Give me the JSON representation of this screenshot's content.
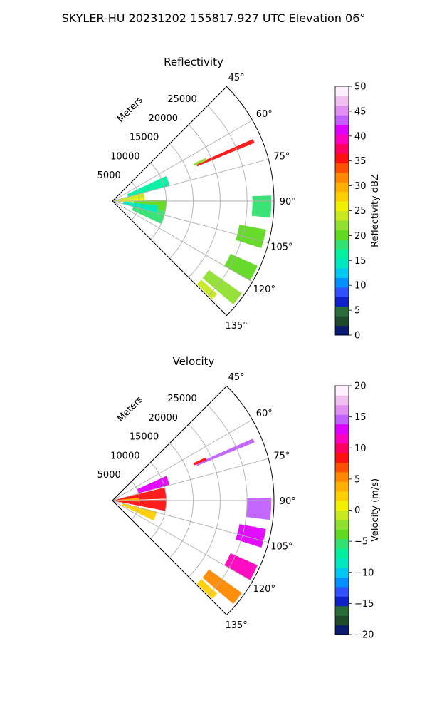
{
  "figure": {
    "suptitle": "SKYLER-HU  20231202  155817.927 UTC Elevation 06°"
  },
  "chart_data": [
    {
      "type": "polar-sector",
      "title": "Reflectivity",
      "radial_label": "Meters",
      "theta_range_deg": [
        45,
        135
      ],
      "theta_ticks": [
        "45°",
        "60°",
        "75°",
        "90°",
        "105°",
        "120°",
        "135°"
      ],
      "theta_tick_values": [
        45,
        60,
        75,
        90,
        105,
        120,
        135
      ],
      "r_range": [
        0,
        30000
      ],
      "r_ticks": [
        "5000",
        "10000",
        "15000",
        "20000",
        "25000"
      ],
      "r_tick_values": [
        5000,
        10000,
        15000,
        20000,
        25000
      ],
      "grid": true,
      "colorbar": {
        "label": "Reflectivity dBZ",
        "range": [
          0,
          50
        ],
        "ticks": [
          "0",
          "5",
          "10",
          "15",
          "20",
          "25",
          "30",
          "35",
          "40",
          "45",
          "50"
        ],
        "tick_values": [
          0,
          5,
          10,
          15,
          20,
          25,
          30,
          35,
          40,
          45,
          50
        ],
        "colors": [
          "#0a1a6e",
          "#1e4a2a",
          "#2a6b3a",
          "#1020c8",
          "#3050ff",
          "#0090ff",
          "#00c8f0",
          "#00e8c0",
          "#00f0a0",
          "#30e070",
          "#60d820",
          "#90e030",
          "#c8e820",
          "#f0f000",
          "#ffd000",
          "#ffb000",
          "#ff8800",
          "#ff5000",
          "#ff1010",
          "#ff0060",
          "#ff00c0",
          "#e000ff",
          "#c060ff",
          "#e090f0",
          "#f0c0f0",
          "#fff0ff"
        ]
      },
      "echoes": [
        {
          "theta": 67,
          "r1": 17000,
          "r2": 28500,
          "value": 36,
          "width_deg": 1.5
        },
        {
          "theta": 66,
          "r1": 16500,
          "r2": 19000,
          "value": 22,
          "width_deg": 1.5
        },
        {
          "theta": 80,
          "r1": 0,
          "r2": 6000,
          "value": 24,
          "width_deg": 10
        },
        {
          "theta": 70,
          "r1": 3000,
          "r2": 11000,
          "value": 17,
          "width_deg": 10
        },
        {
          "theta": 90,
          "r1": 500,
          "r2": 6000,
          "value": 26,
          "width_deg": 10
        },
        {
          "theta": 95,
          "r1": 4000,
          "r2": 10000,
          "value": 20,
          "width_deg": 12
        },
        {
          "theta": 108,
          "r1": 4000,
          "r2": 10000,
          "value": 18,
          "width_deg": 14
        },
        {
          "theta": 100,
          "r1": 2000,
          "r2": 8500,
          "value": 14,
          "width_deg": 10
        },
        {
          "theta": 92,
          "r1": 26000,
          "r2": 29500,
          "value": 19,
          "width_deg": 8
        },
        {
          "theta": 104,
          "r1": 24000,
          "r2": 29000,
          "value": 20,
          "width_deg": 7
        },
        {
          "theta": 117,
          "r1": 24000,
          "r2": 29500,
          "value": 21,
          "width_deg": 6
        },
        {
          "theta": 128,
          "r1": 22000,
          "r2": 29500,
          "value": 22,
          "width_deg": 5
        },
        {
          "theta": 133,
          "r1": 22000,
          "r2": 26000,
          "value": 24,
          "width_deg": 3
        }
      ]
    },
    {
      "type": "polar-sector",
      "title": "Velocity",
      "radial_label": "Meters",
      "theta_range_deg": [
        45,
        135
      ],
      "theta_ticks": [
        "45°",
        "60°",
        "75°",
        "90°",
        "105°",
        "120°",
        "135°"
      ],
      "theta_tick_values": [
        45,
        60,
        75,
        90,
        105,
        120,
        135
      ],
      "r_range": [
        0,
        30000
      ],
      "r_ticks": [
        "5000",
        "10000",
        "15000",
        "20000",
        "25000"
      ],
      "r_tick_values": [
        5000,
        10000,
        15000,
        20000,
        25000
      ],
      "grid": true,
      "colorbar": {
        "label": "Velocity (m/s)",
        "range": [
          -20,
          20
        ],
        "ticks": [
          "−20",
          "−15",
          "−10",
          "−5",
          "0",
          "5",
          "10",
          "15",
          "20"
        ],
        "tick_values": [
          -20,
          -15,
          -10,
          -5,
          0,
          5,
          10,
          15,
          20
        ],
        "colors": [
          "#0a1a6e",
          "#1e4a2a",
          "#2a6b3a",
          "#1020c8",
          "#3050ff",
          "#0090ff",
          "#00c8f0",
          "#00e8c0",
          "#00f0a0",
          "#30e070",
          "#60d820",
          "#90e030",
          "#c8e820",
          "#f0f000",
          "#ffd000",
          "#ffb000",
          "#ff8800",
          "#ff5000",
          "#ff1010",
          "#ff0060",
          "#ff00c0",
          "#e000ff",
          "#c060ff",
          "#e090f0",
          "#f0c0f0",
          "#fff0ff"
        ]
      },
      "echoes": [
        {
          "theta": 67,
          "r1": 17000,
          "r2": 28500,
          "value": 14,
          "width_deg": 1.5
        },
        {
          "theta": 66,
          "r1": 16500,
          "r2": 19000,
          "value": 8,
          "width_deg": 1.5
        },
        {
          "theta": 70,
          "r1": 5000,
          "r2": 11000,
          "value": 13,
          "width_deg": 9
        },
        {
          "theta": 82,
          "r1": 0,
          "r2": 10000,
          "value": 9,
          "width_deg": 12
        },
        {
          "theta": 95,
          "r1": 500,
          "r2": 10000,
          "value": 8,
          "width_deg": 12
        },
        {
          "theta": 110,
          "r1": 2000,
          "r2": 8500,
          "value": 3,
          "width_deg": 12
        },
        {
          "theta": 88,
          "r1": 0,
          "r2": 5000,
          "value": 4,
          "width_deg": 8
        },
        {
          "theta": 93,
          "r1": 25000,
          "r2": 29500,
          "value": 15,
          "width_deg": 8
        },
        {
          "theta": 104,
          "r1": 24000,
          "r2": 29000,
          "value": 13,
          "width_deg": 7
        },
        {
          "theta": 117,
          "r1": 24000,
          "r2": 29500,
          "value": 11,
          "width_deg": 6
        },
        {
          "theta": 128,
          "r1": 22000,
          "r2": 29500,
          "value": 5,
          "width_deg": 5
        },
        {
          "theta": 133,
          "r1": 22000,
          "r2": 26000,
          "value": 2,
          "width_deg": 3
        }
      ]
    }
  ]
}
